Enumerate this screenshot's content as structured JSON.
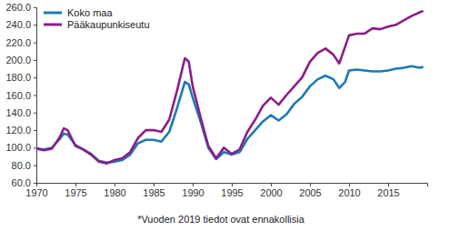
{
  "chart_data": {
    "type": "line",
    "annotation": "*Vuoden 2019 tiedot ovat ennakollisia",
    "legend": "upper left",
    "grid": false,
    "xlim": [
      1970,
      2020
    ],
    "xticks": [
      1970,
      1975,
      1980,
      1985,
      1990,
      1995,
      2000,
      2005,
      2010,
      2015
    ],
    "ylim": [
      60,
      260
    ],
    "yticks": [
      {
        "value": 60,
        "label": "60.0"
      },
      {
        "value": 80,
        "label": "80.0"
      },
      {
        "value": 100,
        "label": "100.0"
      },
      {
        "value": 120,
        "label": "120.0"
      },
      {
        "value": 140,
        "label": "140.0"
      },
      {
        "value": 160,
        "label": "160.0"
      },
      {
        "value": 180,
        "label": "180.0"
      },
      {
        "value": 200,
        "label": "200.0"
      },
      {
        "value": 220,
        "label": "220.0"
      },
      {
        "value": 240,
        "label": "240.0"
      },
      {
        "value": 260,
        "label": "260.0"
      }
    ],
    "x": [
      1970,
      1971,
      1972,
      1973,
      1973.5,
      1974,
      1975,
      1976,
      1977,
      1978,
      1979,
      1980,
      1981,
      1982,
      1983,
      1984,
      1985,
      1986,
      1987,
      1988,
      1989,
      1989.5,
      1990,
      1991,
      1992,
      1993,
      1994,
      1995,
      1996,
      1997,
      1998,
      1999,
      2000,
      2001,
      2002,
      2003,
      2004,
      2005,
      2006,
      2007,
      2008,
      2008.75,
      2009.5,
      2010,
      2011,
      2012,
      2013,
      2014,
      2015,
      2016,
      2017,
      2018,
      2019,
      2019.5
    ],
    "series": [
      {
        "name": "Koko maa",
        "color": "#1c7ab5",
        "values": [
          99,
          98,
          100,
          110,
          116,
          115,
          103,
          98,
          93,
          85,
          83,
          84,
          86,
          92,
          105,
          109,
          109,
          107,
          118,
          145,
          175,
          172,
          157,
          130,
          100,
          87,
          95,
          92,
          95,
          110,
          120,
          130,
          137,
          131,
          138,
          150,
          158,
          170,
          178,
          182,
          178,
          168,
          175,
          188,
          189,
          188,
          187,
          187,
          188,
          190,
          191,
          193,
          191,
          192
        ]
      },
      {
        "name": "Pääkaupunkiseutu",
        "color": "#8c1d86",
        "values": [
          99,
          97,
          99,
          112,
          122,
          120,
          102,
          98,
          92,
          84,
          82,
          86,
          88,
          95,
          111,
          120,
          120,
          118,
          132,
          165,
          202,
          198,
          170,
          135,
          102,
          88,
          100,
          93,
          98,
          118,
          132,
          148,
          157,
          149,
          160,
          170,
          180,
          198,
          208,
          213,
          206,
          196,
          215,
          228,
          230,
          230,
          236,
          235,
          238,
          240,
          245,
          250,
          254,
          256
        ]
      }
    ]
  }
}
